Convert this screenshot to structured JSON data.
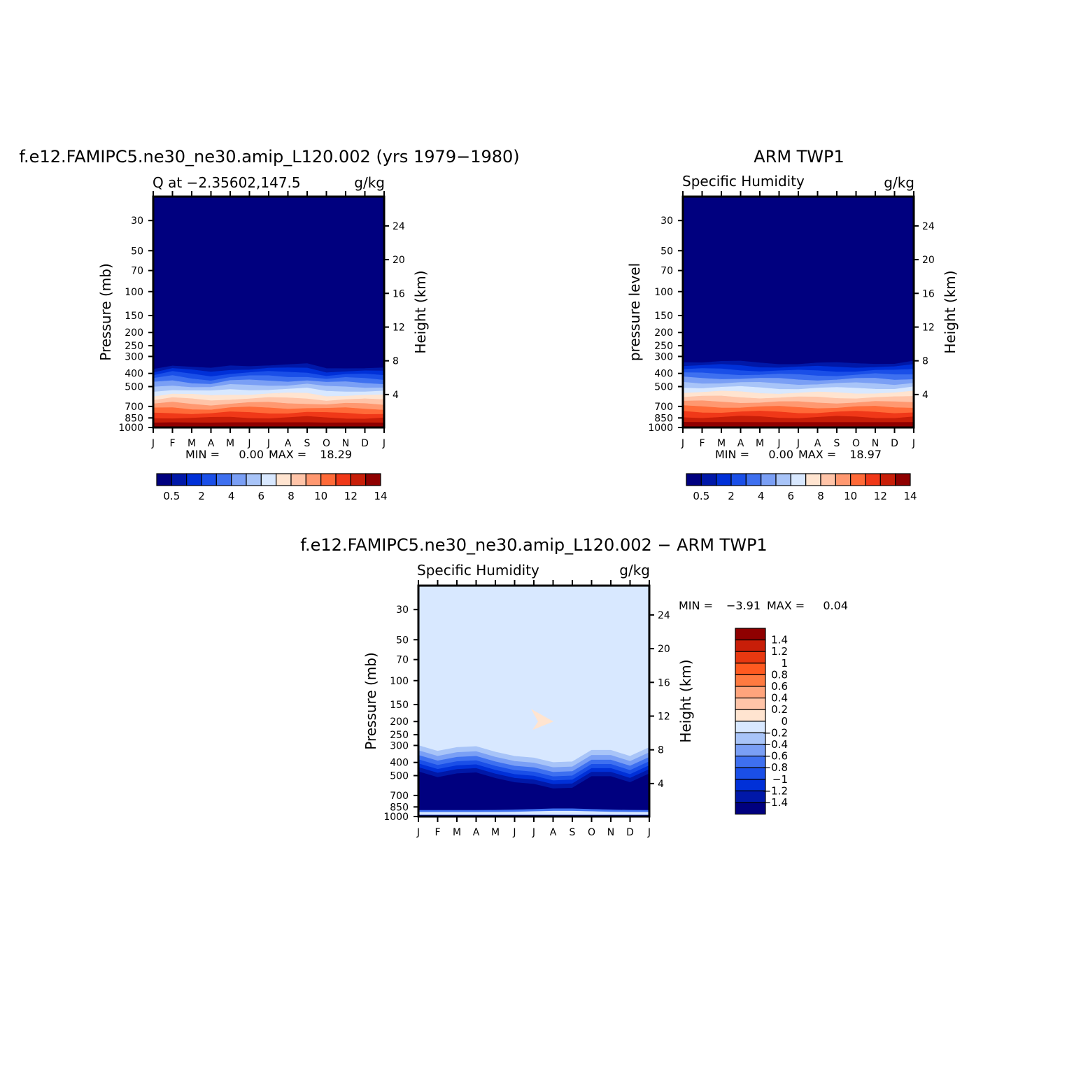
{
  "chart_data": [
    {
      "type": "heatmap",
      "title": "f.e12.FAMIPC5.ne30_ne30.amip_L120.002 (yrs 1979−1980)",
      "subtitle_left": "Q at −2.35602,147.5",
      "subtitle_right": "g/kg",
      "ylabel": "Pressure (mb)",
      "ylabel_right": "Height (km)",
      "x_tick_labels": [
        "J",
        "F",
        "M",
        "A",
        "M",
        "J",
        "J",
        "A",
        "S",
        "O",
        "N",
        "D",
        "J"
      ],
      "y_tick_labels": [
        "30",
        "50",
        "70",
        "100",
        "150",
        "200",
        "250",
        "300",
        "400",
        "500",
        "700",
        "850",
        "1000"
      ],
      "y_right_tick_labels": [
        "24",
        "20",
        "16",
        "12",
        "8",
        "4"
      ],
      "min_label": "MIN =",
      "min_value": "0.00",
      "max_label": "MAX =",
      "max_value": "18.29",
      "colorbar_labels": [
        "0.5",
        "2",
        "4",
        "6",
        "8",
        "10",
        "12",
        "14"
      ],
      "moisture_top_pressure": [
        350,
        330,
        345,
        355,
        335,
        332,
        330,
        332,
        328,
        350,
        345,
        348,
        352
      ],
      "surface_max_gkg": 18.29
    },
    {
      "type": "heatmap",
      "title": "ARM TWP1",
      "subtitle_left": "Specific Humidity",
      "subtitle_right": "g/kg",
      "ylabel": "pressure level",
      "ylabel_right": "Height (km)",
      "x_tick_labels": [
        "J",
        "F",
        "M",
        "A",
        "M",
        "J",
        "J",
        "A",
        "S",
        "O",
        "N",
        "D",
        "J"
      ],
      "y_tick_labels": [
        "30",
        "50",
        "70",
        "100",
        "150",
        "200",
        "250",
        "300",
        "400",
        "500",
        "700",
        "850",
        "1000"
      ],
      "y_right_tick_labels": [
        "24",
        "20",
        "16",
        "12",
        "8",
        "4"
      ],
      "min_label": "MIN =",
      "min_value": "0.00",
      "max_label": "MAX =",
      "max_value": "18.97",
      "colorbar_labels": [
        "0.5",
        "2",
        "4",
        "6",
        "8",
        "10",
        "12",
        "14"
      ],
      "moisture_top_pressure": [
        310,
        312,
        312,
        314,
        318,
        320,
        322,
        322,
        322,
        320,
        318,
        322,
        312
      ],
      "surface_max_gkg": 18.97
    },
    {
      "type": "heatmap",
      "title": "f.e12.FAMIPC5.ne30_ne30.amip_L120.002 − ARM TWP1",
      "subtitle_left": "Specific Humidity",
      "subtitle_right": "g/kg",
      "ylabel": "Pressure (mb)",
      "ylabel_right": "Height (km)",
      "x_tick_labels": [
        "J",
        "F",
        "M",
        "A",
        "M",
        "J",
        "J",
        "A",
        "S",
        "O",
        "N",
        "D",
        "J"
      ],
      "y_tick_labels": [
        "30",
        "50",
        "70",
        "100",
        "150",
        "200",
        "250",
        "300",
        "400",
        "500",
        "700",
        "850",
        "1000"
      ],
      "y_right_tick_labels": [
        "24",
        "20",
        "16",
        "12",
        "8",
        "4"
      ],
      "min_label": "MIN =",
      "min_value": "−3.91",
      "max_label": "MAX =",
      "max_value": "0.04",
      "colorbar_labels": [
        "1.4",
        "1.2",
        "1",
        "0.8",
        "0.6",
        "0.4",
        "0.2",
        "0",
        "−0.2",
        "−0.4",
        "−0.6",
        "−0.8",
        "−1",
        "−1.2",
        "−1.4"
      ],
      "negative_top_pressure": [
        300,
        330,
        310,
        305,
        335,
        360,
        370,
        400,
        395,
        325,
        325,
        360,
        310
      ]
    }
  ],
  "palettes": {
    "sequential": [
      "#00007f",
      "#0018a8",
      "#0030d8",
      "#1a4fe8",
      "#3e70f0",
      "#7a9ff5",
      "#a8c4f8",
      "#d8e8ff",
      "#ffe4d0",
      "#ffc4a8",
      "#ff9870",
      "#ff6a38",
      "#f03818",
      "#c81e08",
      "#8f0000"
    ],
    "difference": [
      "#8f0000",
      "#c81e08",
      "#e83810",
      "#ff5a20",
      "#ff7a40",
      "#ffa47c",
      "#ffc4a8",
      "#ffe4d0",
      "#d8e8ff",
      "#a8c4f8",
      "#7a9ff5",
      "#3e70f0",
      "#1a4fe8",
      "#0030d8",
      "#0018a8",
      "#00007f"
    ]
  }
}
